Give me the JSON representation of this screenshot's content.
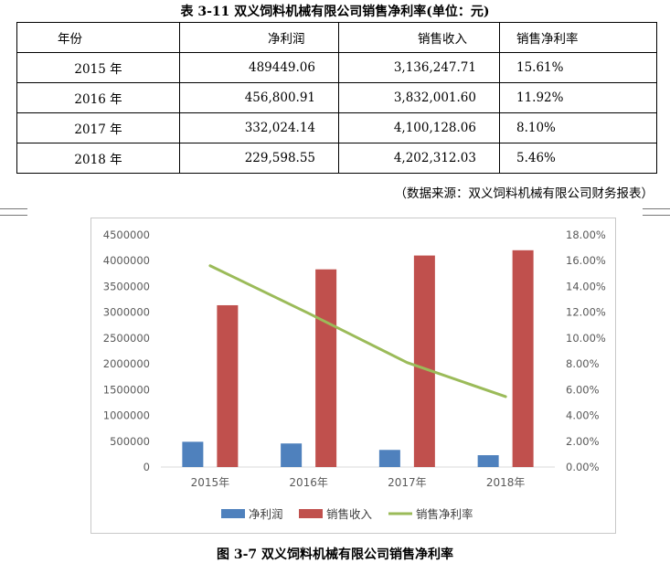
{
  "table": {
    "title": "表 3-11 双义饲料机械有限公司销售净利率(单位：元)",
    "headers": [
      "年份",
      "净利润",
      "销售收入",
      "销售净利率"
    ],
    "rows": [
      [
        "2015 年",
        "489449.06",
        "3,136,247.71",
        "15.61%"
      ],
      [
        "2016 年",
        "456,800.91",
        "3,832,001.60",
        "11.92%"
      ],
      [
        "2017 年",
        "332,024.14",
        "4,100,128.06",
        "8.10%"
      ],
      [
        "2018 年",
        "229,598.55",
        "4,202,312.03",
        "5.46%"
      ]
    ],
    "source_note": "（数据来源：双义饲料机械有限公司财务报表）"
  },
  "figure_caption": "图 3-7 双义饲料机械有限公司销售净利率",
  "chart_data": {
    "type": "bar",
    "categories": [
      "2015年",
      "2016年",
      "2017年",
      "2018年"
    ],
    "series": [
      {
        "name": "净利润",
        "type": "bar",
        "axis": "left",
        "color": "#4f81bd",
        "values": [
          489449.06,
          456800.91,
          332024.14,
          229598.55
        ]
      },
      {
        "name": "销售收入",
        "type": "bar",
        "axis": "left",
        "color": "#c0504d",
        "values": [
          3136247.71,
          3832001.6,
          4100128.06,
          4202312.03
        ]
      },
      {
        "name": "销售净利率",
        "type": "line",
        "axis": "right",
        "color": "#9bbb59",
        "values": [
          15.61,
          11.92,
          8.1,
          5.46
        ]
      }
    ],
    "y_left": {
      "min": 0,
      "max": 4500000,
      "ticks": [
        "0",
        "500000",
        "1000000",
        "1500000",
        "2000000",
        "2500000",
        "3000000",
        "3500000",
        "4000000",
        "4500000"
      ]
    },
    "y_right": {
      "min": 0,
      "max": 18,
      "ticks": [
        "0.00%",
        "2.00%",
        "4.00%",
        "6.00%",
        "8.00%",
        "10.00%",
        "12.00%",
        "14.00%",
        "16.00%",
        "18.00%"
      ]
    },
    "grid": false,
    "legend": "bottom"
  }
}
